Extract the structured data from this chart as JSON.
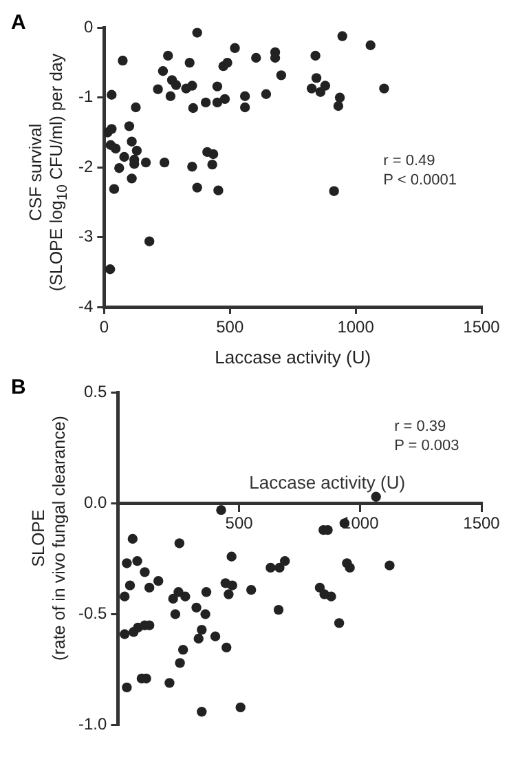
{
  "chart_data": [
    {
      "type": "scatter",
      "title": "A",
      "xlabel": "Laccase activity (U)",
      "ylabel": "CSF survival\n(SLOPE log$_{10}$ CFU/ml) per day",
      "annotations": [
        "r = 0.49",
        "P < 0.0001"
      ],
      "xlim": [
        0,
        1500
      ],
      "ylim": [
        -4,
        0
      ],
      "xticks": [
        0,
        500,
        1000,
        1500
      ],
      "yticks": [
        -4,
        -3,
        -2,
        -1,
        0
      ],
      "grid": false,
      "legend": false,
      "marker": "circle",
      "series": [
        {
          "color": "#222222",
          "x": [
            370,
            520,
            74,
            254,
            340,
            234,
            214,
            270,
            286,
            264,
            326,
            350,
            354,
            404,
            450,
            450,
            480,
            474,
            490,
            560,
            560,
            604,
            680,
            680,
            704,
            644,
            30,
            126,
            30,
            14,
            100,
            26,
            46,
            110,
            130,
            80,
            120,
            60,
            166,
            240,
            120,
            110,
            40,
            350,
            370,
            410,
            434,
            430,
            454,
            180,
            24,
            947,
            1059,
            840,
            844,
            825,
            860,
            879,
            937,
            931,
            1113,
            914
          ],
          "values": [
            -0.07,
            -0.29,
            -0.47,
            -0.4,
            -0.5,
            -0.62,
            -0.88,
            -0.75,
            -0.82,
            -0.98,
            -0.87,
            -0.83,
            -1.15,
            -1.07,
            -0.84,
            -1.07,
            -1.02,
            -0.55,
            -0.5,
            -0.98,
            -1.14,
            -0.43,
            -0.35,
            -0.43,
            -0.68,
            -0.95,
            -0.96,
            -1.14,
            -1.45,
            -1.5,
            -1.41,
            -1.68,
            -1.73,
            -1.63,
            -1.76,
            -1.85,
            -1.89,
            -2.01,
            -1.93,
            -1.93,
            -1.95,
            -2.16,
            -2.31,
            -1.99,
            -2.29,
            -1.78,
            -1.81,
            -1.96,
            -2.33,
            -3.06,
            -3.46,
            -0.12,
            -0.25,
            -0.4,
            -0.72,
            -0.87,
            -0.92,
            -0.83,
            -1.0,
            -1.12,
            -0.87,
            -2.34
          ]
        }
      ]
    },
    {
      "type": "scatter",
      "title": "B",
      "xlabel": "Laccase activity (U)",
      "ylabel": "SLOPE\n(rate of in vivo fungal clearance)",
      "annotations": [
        "r = 0.39",
        "P = 0.003"
      ],
      "xlim": [
        0,
        1500
      ],
      "ylim": [
        -1,
        0.5
      ],
      "xticks": [
        500,
        1000,
        1500
      ],
      "yticks": [
        {
          "value": -1,
          "label": "-1.0"
        },
        -0.5,
        {
          "value": 0,
          "label": "0.0"
        },
        0.5
      ],
      "grid": false,
      "legend": false,
      "marker": "circle",
      "series": [
        {
          "color": "#222222",
          "x": [
            426,
            61,
            37,
            80,
            111,
            167,
            130,
            50,
            28,
            254,
            250,
            278,
            228,
            237,
            365,
            469,
            444,
            457,
            472,
            550,
            630,
            667,
            689,
            663,
            324,
            361,
            346,
            333,
            402,
            448,
            269,
            256,
            213,
            28,
            65,
            83,
            111,
            130,
            37,
            98,
            117,
            346,
            506,
            833,
            848,
            866,
            880,
            913,
            1065,
            935,
            945,
            957,
            1121,
            852
          ],
          "values": [
            -0.03,
            -0.16,
            -0.27,
            -0.26,
            -0.31,
            -0.35,
            -0.38,
            -0.37,
            -0.42,
            -0.18,
            -0.4,
            -0.42,
            -0.43,
            -0.5,
            -0.4,
            -0.24,
            -0.36,
            -0.41,
            -0.37,
            -0.39,
            -0.29,
            -0.29,
            -0.26,
            -0.48,
            -0.47,
            -0.5,
            -0.57,
            -0.61,
            -0.6,
            -0.65,
            -0.66,
            -0.72,
            -0.81,
            -0.59,
            -0.58,
            -0.56,
            -0.55,
            -0.55,
            -0.83,
            -0.79,
            -0.79,
            -0.94,
            -0.92,
            -0.38,
            -0.12,
            -0.12,
            -0.42,
            -0.54,
            0.03,
            -0.09,
            -0.27,
            -0.29,
            -0.28,
            -0.41
          ]
        }
      ]
    }
  ]
}
